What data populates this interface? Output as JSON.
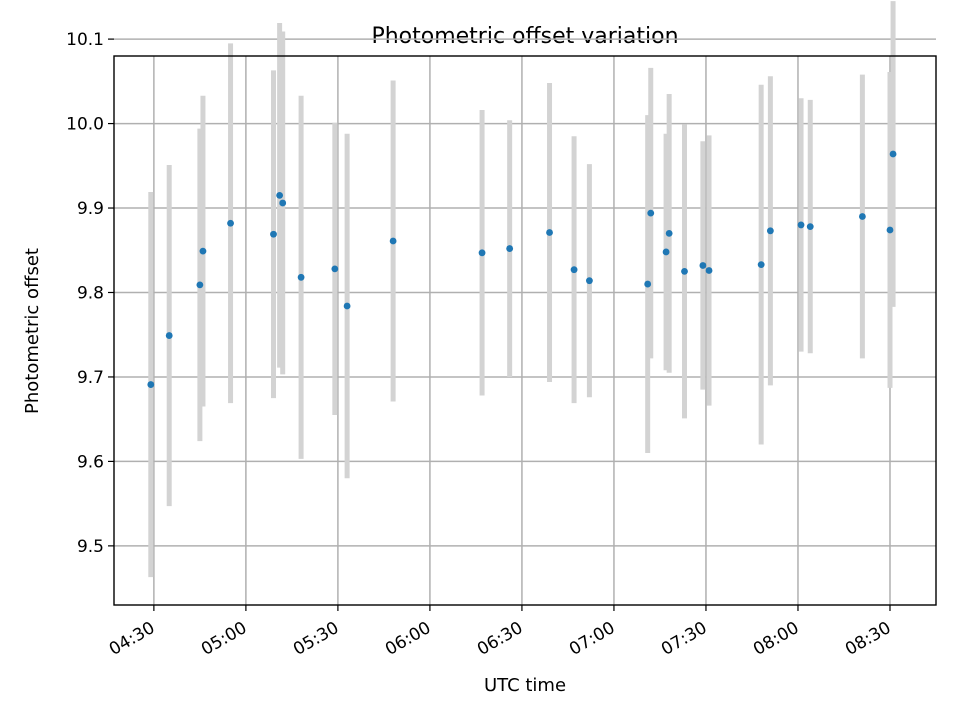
{
  "chart_data": {
    "type": "scatter",
    "title": "Photometric offset variation",
    "xlabel": "UTC time",
    "ylabel": "Photometric offset",
    "xlim": [
      "04:17",
      "08:45"
    ],
    "ylim": [
      9.43,
      10.08
    ],
    "x_ticks": [
      "04:30",
      "05:00",
      "05:30",
      "06:00",
      "06:30",
      "07:00",
      "07:30",
      "08:00",
      "08:30"
    ],
    "y_ticks": [
      "9.5",
      "9.6",
      "9.7",
      "9.8",
      "9.9",
      "10.0",
      "10.1"
    ],
    "grid": true,
    "point_color": "#1f77b4",
    "errorbar_color": "#d3d3d3",
    "points": [
      {
        "time": "04:29",
        "value": 9.691,
        "error": 0.228
      },
      {
        "time": "04:35",
        "value": 9.749,
        "error": 0.202
      },
      {
        "time": "04:45",
        "value": 9.809,
        "error": 0.185
      },
      {
        "time": "04:46",
        "value": 9.849,
        "error": 0.184
      },
      {
        "time": "04:55",
        "value": 9.882,
        "error": 0.213
      },
      {
        "time": "05:09",
        "value": 9.869,
        "error": 0.194
      },
      {
        "time": "05:11",
        "value": 9.915,
        "error": 0.204
      },
      {
        "time": "05:12",
        "value": 9.906,
        "error": 0.203
      },
      {
        "time": "05:18",
        "value": 9.818,
        "error": 0.215
      },
      {
        "time": "05:29",
        "value": 9.828,
        "error": 0.173
      },
      {
        "time": "05:33",
        "value": 9.784,
        "error": 0.204
      },
      {
        "time": "05:48",
        "value": 9.861,
        "error": 0.19
      },
      {
        "time": "06:17",
        "value": 9.847,
        "error": 0.169
      },
      {
        "time": "06:26",
        "value": 9.852,
        "error": 0.152
      },
      {
        "time": "06:39",
        "value": 9.871,
        "error": 0.177
      },
      {
        "time": "06:47",
        "value": 9.827,
        "error": 0.158
      },
      {
        "time": "06:52",
        "value": 9.814,
        "error": 0.138
      },
      {
        "time": "07:11",
        "value": 9.81,
        "error": 0.2
      },
      {
        "time": "07:12",
        "value": 9.894,
        "error": 0.172
      },
      {
        "time": "07:17",
        "value": 9.848,
        "error": 0.14
      },
      {
        "time": "07:18",
        "value": 9.87,
        "error": 0.165
      },
      {
        "time": "07:23",
        "value": 9.825,
        "error": 0.174
      },
      {
        "time": "07:29",
        "value": 9.832,
        "error": 0.147
      },
      {
        "time": "07:31",
        "value": 9.826,
        "error": 0.16
      },
      {
        "time": "07:48",
        "value": 9.833,
        "error": 0.213
      },
      {
        "time": "07:51",
        "value": 9.873,
        "error": 0.183
      },
      {
        "time": "08:01",
        "value": 9.88,
        "error": 0.15
      },
      {
        "time": "08:04",
        "value": 9.878,
        "error": 0.15
      },
      {
        "time": "08:21",
        "value": 9.89,
        "error": 0.168
      },
      {
        "time": "08:30",
        "value": 9.874,
        "error": 0.187
      },
      {
        "time": "08:31",
        "value": 9.964,
        "error": 0.181
      }
    ]
  }
}
